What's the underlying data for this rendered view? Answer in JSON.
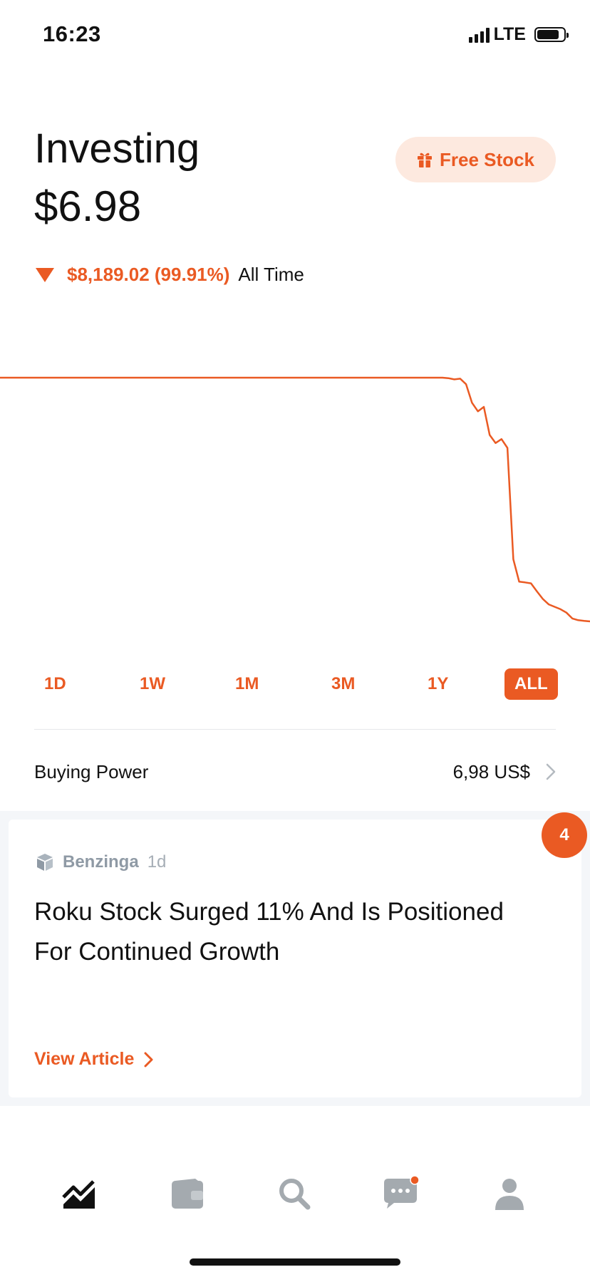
{
  "status_bar": {
    "time": "16:23",
    "network": "LTE"
  },
  "header": {
    "title": "Investing",
    "balance": "$6.98",
    "free_stock_label": "Free Stock"
  },
  "performance": {
    "change": "$8,189.02 (99.91%)",
    "period_label": "All Time",
    "direction": "down"
  },
  "chart_data": {
    "type": "line",
    "title": "",
    "xlabel": "",
    "ylabel": "",
    "period": "ALL",
    "color": "#ea5a23",
    "x": [
      0,
      5,
      10,
      15,
      20,
      25,
      30,
      35,
      40,
      45,
      50,
      55,
      60,
      65,
      70,
      75,
      76,
      77,
      78,
      79,
      80,
      81,
      82,
      83,
      84,
      85,
      86,
      87,
      88,
      89,
      90,
      91,
      92,
      93,
      94,
      95,
      96,
      97,
      98,
      99,
      100
    ],
    "values": [
      100,
      100,
      100,
      100,
      100,
      100,
      100,
      100,
      100,
      100,
      100,
      100,
      100,
      100,
      100,
      100,
      99.8,
      99.3,
      99.6,
      97.3,
      89.7,
      86.2,
      88.0,
      76.5,
      73.2,
      74.8,
      71.2,
      25.5,
      16.3,
      16.0,
      15.6,
      12.3,
      9.2,
      7.0,
      6.0,
      5.0,
      3.6,
      1.2,
      0.5,
      0.2,
      0.0
    ]
  },
  "ranges": [
    "1D",
    "1W",
    "1M",
    "3M",
    "1Y",
    "ALL"
  ],
  "active_range": "ALL",
  "buying_power": {
    "label": "Buying Power",
    "value": "6,98 US$"
  },
  "news": {
    "badge_count": "4",
    "source": "Benzinga",
    "age": "1d",
    "headline": "Roku Stock Surged 11% And Is Positioned For Continued Growth",
    "cta": "View Article"
  },
  "tabbar": {
    "items": [
      "chart-icon",
      "wallet-icon",
      "search-icon",
      "chat-icon",
      "profile-icon"
    ],
    "active": "chart-icon",
    "notification_dot_on": "chat-icon"
  },
  "colors": {
    "accent": "#ea5a23",
    "accent_soft": "#fde9df",
    "muted": "#8f9aa5",
    "tab_inactive": "#a4aaaf"
  }
}
